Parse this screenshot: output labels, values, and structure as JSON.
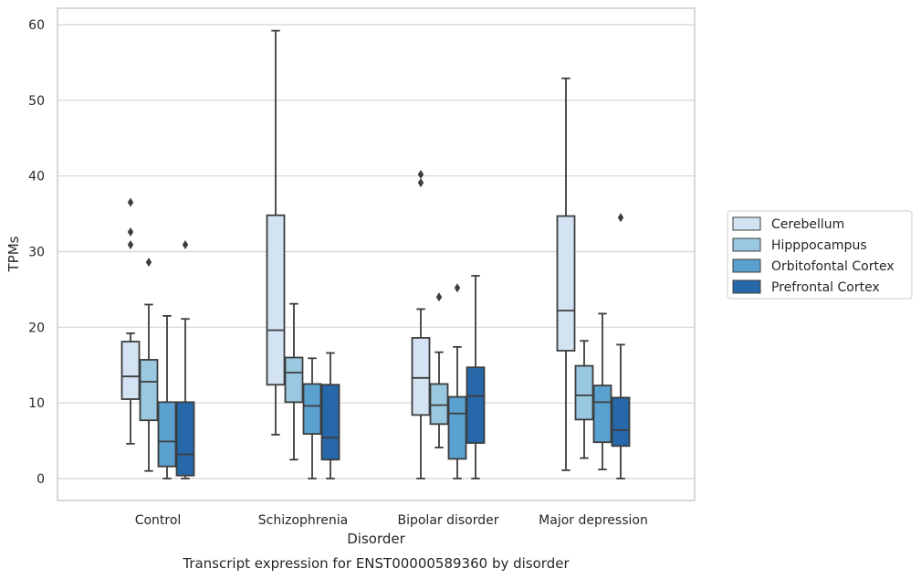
{
  "chart_data": {
    "type": "box",
    "caption": "Transcript expression for ENST00000589360 by disorder",
    "xlabel": "Disorder",
    "ylabel": "TPMs",
    "ylim": [
      -2.8,
      62.2
    ],
    "yticks": [
      0,
      10,
      20,
      30,
      40,
      50,
      60
    ],
    "grid": "horizontal",
    "legend_position": "right",
    "categories": [
      "Control",
      "Schizophrenia",
      "Bipolar disorder",
      "Major depression"
    ],
    "series": [
      {
        "name": "Cerebellum",
        "color": "#d3e3f3",
        "boxes": [
          {
            "whisker_low": 4.6,
            "q1": 10.5,
            "median": 13.5,
            "q3": 18.1,
            "whisker_high": 19.2,
            "outliers": [
              30.9,
              32.6,
              36.5
            ]
          },
          {
            "whisker_low": 5.8,
            "q1": 12.4,
            "median": 19.6,
            "q3": 34.8,
            "whisker_high": 59.2,
            "outliers": []
          },
          {
            "whisker_low": 0.0,
            "q1": 8.4,
            "median": 13.3,
            "q3": 18.6,
            "whisker_high": 22.4,
            "outliers": [
              39.1,
              40.2
            ]
          },
          {
            "whisker_low": 1.1,
            "q1": 16.9,
            "median": 22.2,
            "q3": 34.7,
            "whisker_high": 52.9,
            "outliers": []
          }
        ]
      },
      {
        "name": "Hipppocampus",
        "color": "#9ac8e0",
        "boxes": [
          {
            "whisker_low": 1.0,
            "q1": 7.7,
            "median": 12.8,
            "q3": 15.7,
            "whisker_high": 23.0,
            "outliers": [
              28.6
            ]
          },
          {
            "whisker_low": 2.5,
            "q1": 10.1,
            "median": 14.0,
            "q3": 16.0,
            "whisker_high": 23.1,
            "outliers": []
          },
          {
            "whisker_low": 4.1,
            "q1": 7.2,
            "median": 9.7,
            "q3": 12.5,
            "whisker_high": 16.7,
            "outliers": [
              24.0
            ]
          },
          {
            "whisker_low": 2.7,
            "q1": 7.8,
            "median": 11.0,
            "q3": 14.9,
            "whisker_high": 18.2,
            "outliers": []
          }
        ]
      },
      {
        "name": "Orbitofontal Cortex",
        "color": "#5aa1cf",
        "boxes": [
          {
            "whisker_low": 0.0,
            "q1": 1.6,
            "median": 4.9,
            "q3": 10.1,
            "whisker_high": 21.5,
            "outliers": []
          },
          {
            "whisker_low": 0.0,
            "q1": 5.9,
            "median": 9.6,
            "q3": 12.5,
            "whisker_high": 15.9,
            "outliers": []
          },
          {
            "whisker_low": 0.0,
            "q1": 2.6,
            "median": 8.6,
            "q3": 10.8,
            "whisker_high": 17.4,
            "outliers": [
              25.2
            ]
          },
          {
            "whisker_low": 1.2,
            "q1": 4.8,
            "median": 10.1,
            "q3": 12.3,
            "whisker_high": 21.8,
            "outliers": []
          }
        ]
      },
      {
        "name": "Prefrontal Cortex",
        "color": "#2668aa",
        "boxes": [
          {
            "whisker_low": 0.0,
            "q1": 0.4,
            "median": 3.2,
            "q3": 10.1,
            "whisker_high": 21.1,
            "outliers": [
              30.9
            ]
          },
          {
            "whisker_low": 0.0,
            "q1": 2.5,
            "median": 5.4,
            "q3": 12.4,
            "whisker_high": 16.6,
            "outliers": []
          },
          {
            "whisker_low": 0.0,
            "q1": 4.7,
            "median": 10.9,
            "q3": 14.7,
            "whisker_high": 26.8,
            "outliers": []
          },
          {
            "whisker_low": 0.0,
            "q1": 4.3,
            "median": 6.4,
            "q3": 10.7,
            "whisker_high": 17.7,
            "outliers": [
              34.5
            ]
          }
        ]
      }
    ]
  }
}
